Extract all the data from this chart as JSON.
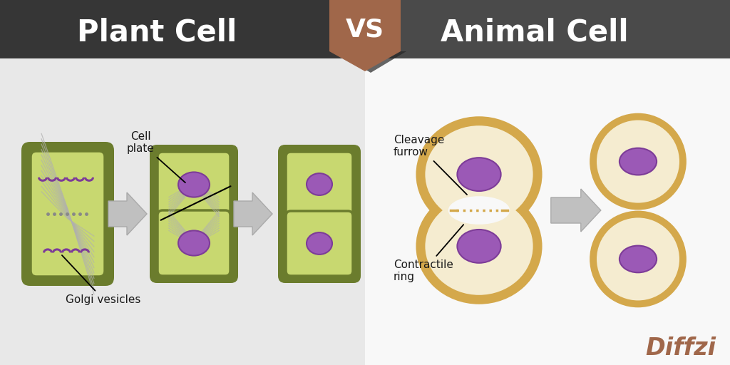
{
  "bg_header_left": "#363636",
  "bg_header_right": "#4a4a4a",
  "bg_content_left": "#e8e8e8",
  "bg_content_right": "#f8f8f8",
  "vs_banner_color": "#a0674a",
  "vs_shadow_color": "#252525",
  "title_left": "Plant Cell",
  "title_right": "Animal Cell",
  "vs_text": "VS",
  "title_color": "#ffffff",
  "plant_wall_color": "#6b7c2d",
  "plant_wall_dark": "#556020",
  "plant_inner_color": "#c8d870",
  "plant_nucleus_color": "#9b59b6",
  "plant_nucleus_edge": "#7d3c98",
  "plant_spindle_color": "#b0b0b0",
  "plant_golgi_color": "#7d3c98",
  "animal_ring_color": "#d4a84b",
  "animal_cytoplasm_color": "#f5ecd0",
  "animal_nucleus_color": "#9b59b6",
  "animal_nucleus_edge": "#7d3c98",
  "label_color": "#1a1a1a",
  "arrow_fill": "#c0c0c0",
  "arrow_edge": "#aaaaaa",
  "diffzi_color": "#a0674a",
  "label_fontsize": 11,
  "title_fontsize": 30
}
